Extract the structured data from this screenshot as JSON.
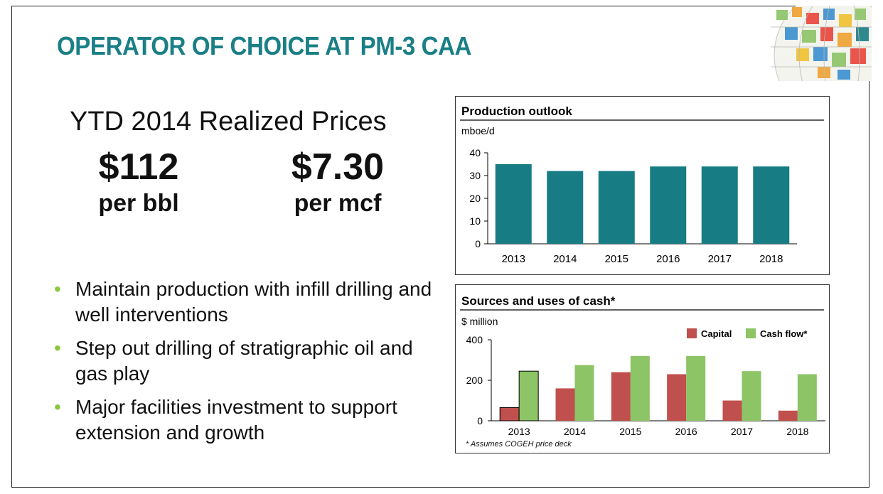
{
  "title": "OPERATOR OF CHOICE AT PM-3 CAA",
  "prices": {
    "heading": "YTD 2014 Realized Prices",
    "oil": {
      "value": "$112",
      "unit": "per bbl"
    },
    "gas": {
      "value": "$7.30",
      "unit": "per mcf"
    }
  },
  "bullets": [
    "Maintain production with infill drilling and well interventions",
    "Step out drilling of stratigraphic oil and gas play",
    "Major facilities investment to support extension and growth"
  ],
  "bullet_glyph": "•",
  "colors": {
    "title": "#1a7f86",
    "production_bar": "#177c84",
    "capital": "#c0504d",
    "cash_flow": "#8cc466",
    "bullet": "#8dc63f"
  },
  "chart_data": [
    {
      "type": "bar",
      "title": "Production outlook",
      "ylabel": "mboe/d",
      "categories": [
        "2013",
        "2014",
        "2015",
        "2016",
        "2017",
        "2018"
      ],
      "values": [
        35,
        32,
        32,
        34,
        34,
        34
      ],
      "ylim": [
        0,
        40
      ],
      "yticks": [
        0,
        10,
        20,
        30,
        40
      ],
      "legend": "none"
    },
    {
      "type": "bar",
      "title": "Sources and uses of cash*",
      "ylabel": "$ million",
      "categories": [
        "2013",
        "2014",
        "2015",
        "2016",
        "2017",
        "2018"
      ],
      "series": [
        {
          "name": "Capital",
          "values": [
            65,
            160,
            240,
            230,
            100,
            50
          ]
        },
        {
          "name": "Cash flow*",
          "values": [
            245,
            275,
            320,
            320,
            245,
            230
          ]
        }
      ],
      "ylim": [
        0,
        400
      ],
      "yticks": [
        0,
        200,
        400
      ],
      "legend": "top-right",
      "footnote": "*   Assumes COGEH price deck"
    }
  ]
}
